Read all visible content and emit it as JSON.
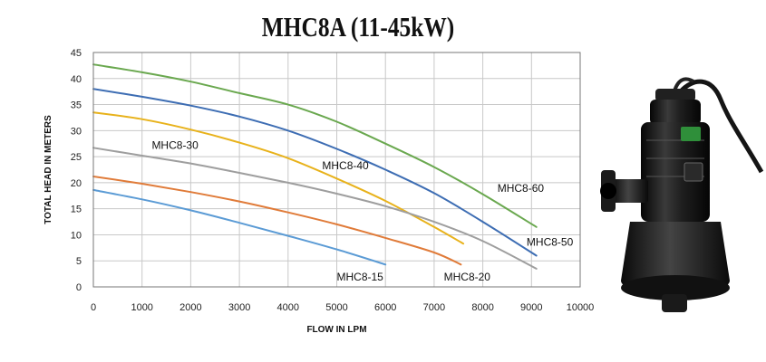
{
  "chart_data": {
    "type": "line",
    "title": "MHC8A (11-45kW)",
    "xlabel": "FLOW IN LPM",
    "ylabel": "TOTAL HEAD IN METERS",
    "xlim": [
      0,
      10000
    ],
    "ylim": [
      0,
      45
    ],
    "xticks": [
      0,
      1000,
      2000,
      3000,
      4000,
      5000,
      6000,
      7000,
      8000,
      9000,
      10000
    ],
    "yticks": [
      0,
      5,
      10,
      15,
      20,
      25,
      30,
      35,
      40,
      45
    ],
    "grid": true,
    "legend": "none",
    "series": [
      {
        "name": "MHC8-60",
        "color": "#6aa84f",
        "points": [
          [
            0,
            42.7
          ],
          [
            1000,
            41.2
          ],
          [
            2000,
            39.4
          ],
          [
            3000,
            37.2
          ],
          [
            4000,
            35.0
          ],
          [
            5000,
            31.7
          ],
          [
            6000,
            27.5
          ],
          [
            7000,
            23.0
          ],
          [
            8000,
            17.8
          ],
          [
            9100,
            11.5
          ]
        ]
      },
      {
        "name": "MHC8-50",
        "color": "#3d6db3",
        "points": [
          [
            0,
            38.0
          ],
          [
            1000,
            36.5
          ],
          [
            2000,
            34.8
          ],
          [
            3000,
            32.7
          ],
          [
            4000,
            30.0
          ],
          [
            5000,
            26.5
          ],
          [
            6000,
            22.5
          ],
          [
            7000,
            18.0
          ],
          [
            8000,
            12.5
          ],
          [
            9100,
            6.0
          ]
        ]
      },
      {
        "name": "MHC8-40",
        "color": "#e8b21b",
        "points": [
          [
            0,
            33.5
          ],
          [
            1000,
            32.2
          ],
          [
            2000,
            30.2
          ],
          [
            3000,
            27.7
          ],
          [
            4000,
            24.7
          ],
          [
            5000,
            20.8
          ],
          [
            6000,
            16.5
          ],
          [
            7000,
            11.5
          ],
          [
            7600,
            8.3
          ]
        ]
      },
      {
        "name": "MHC8-30",
        "color": "#9e9e9e",
        "points": [
          [
            0,
            26.7
          ],
          [
            1000,
            25.2
          ],
          [
            2000,
            23.7
          ],
          [
            3000,
            21.9
          ],
          [
            4000,
            20.0
          ],
          [
            5000,
            17.9
          ],
          [
            6000,
            15.5
          ],
          [
            7000,
            12.5
          ],
          [
            8000,
            8.8
          ],
          [
            9100,
            3.5
          ]
        ]
      },
      {
        "name": "MHC8-20",
        "color": "#e07b39",
        "points": [
          [
            0,
            21.2
          ],
          [
            1000,
            19.8
          ],
          [
            2000,
            18.2
          ],
          [
            3000,
            16.4
          ],
          [
            4000,
            14.3
          ],
          [
            5000,
            12.0
          ],
          [
            6000,
            9.4
          ],
          [
            7000,
            6.6
          ],
          [
            7550,
            4.3
          ]
        ]
      },
      {
        "name": "MHC8-15",
        "color": "#5b9bd5",
        "points": [
          [
            0,
            18.6
          ],
          [
            1000,
            16.8
          ],
          [
            2000,
            14.7
          ],
          [
            3000,
            12.3
          ],
          [
            4000,
            9.8
          ],
          [
            5000,
            7.2
          ],
          [
            6000,
            4.3
          ]
        ]
      }
    ],
    "annotations": [
      {
        "text": "MHC8-30",
        "x": 1200,
        "y": 26.5,
        "anchor": "start"
      },
      {
        "text": "MHC8-40",
        "x": 4700,
        "y": 22.6,
        "anchor": "start"
      },
      {
        "text": "MHC8-60",
        "x": 8300,
        "y": 18.2,
        "anchor": "start"
      },
      {
        "text": "MHC8-50",
        "x": 8900,
        "y": 7.9,
        "anchor": "start"
      },
      {
        "text": "MHC8-15",
        "x": 5000,
        "y": 1.2,
        "anchor": "start"
      },
      {
        "text": "MHC8-20",
        "x": 7200,
        "y": 1.2,
        "anchor": "start"
      }
    ]
  },
  "image": {
    "pump": {
      "body_color": "#1b1b1b",
      "badge_color": "#2f8f3a",
      "cable_color": "#151515"
    }
  }
}
